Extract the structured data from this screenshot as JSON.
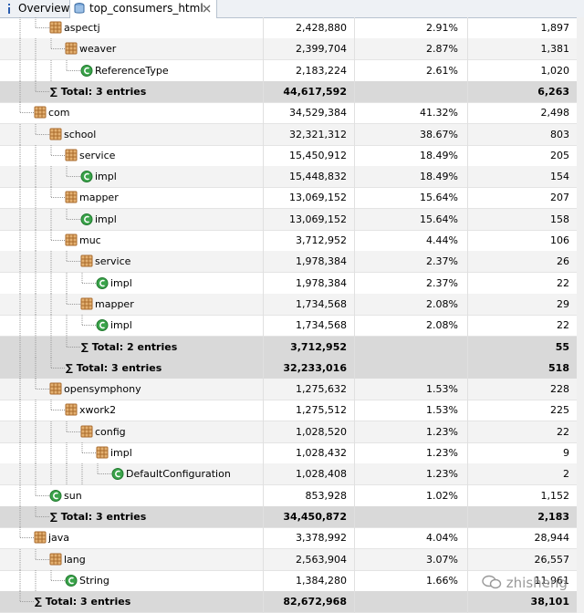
{
  "tabs": [
    {
      "label": "Overview"
    },
    {
      "label": "top_consumers_html"
    }
  ],
  "table": {
    "rows": [
      {
        "name": "aspectj",
        "size": "2,428,880",
        "percent": "2.91%",
        "objects": "1,897"
      },
      {
        "name": "weaver",
        "size": "2,399,704",
        "percent": "2.87%",
        "objects": "1,381"
      },
      {
        "name": "ReferenceType",
        "size": "2,183,224",
        "percent": "2.61%",
        "objects": "1,020"
      },
      {
        "name": "∑ Total: 3 entries",
        "size": "44,617,592",
        "objects": "6,263"
      },
      {
        "name": "com",
        "size": "34,529,384",
        "percent": "41.32%",
        "objects": "2,498"
      },
      {
        "name": "school",
        "size": "32,321,312",
        "percent": "38.67%",
        "objects": "803"
      },
      {
        "name": "service",
        "size": "15,450,912",
        "percent": "18.49%",
        "objects": "205"
      },
      {
        "name": "impl",
        "size": "15,448,832",
        "percent": "18.49%",
        "objects": "154"
      },
      {
        "name": "mapper",
        "size": "13,069,152",
        "percent": "15.64%",
        "objects": "207"
      },
      {
        "name": "impl",
        "size": "13,069,152",
        "percent": "15.64%",
        "objects": "158"
      },
      {
        "name": "muc",
        "size": "3,712,952",
        "percent": "4.44%",
        "objects": "106"
      },
      {
        "name": "service",
        "size": "1,978,384",
        "percent": "2.37%",
        "objects": "26"
      },
      {
        "name": "impl",
        "size": "1,978,384",
        "percent": "2.37%",
        "objects": "22"
      },
      {
        "name": "mapper",
        "size": "1,734,568",
        "percent": "2.08%",
        "objects": "29"
      },
      {
        "name": "impl",
        "size": "1,734,568",
        "percent": "2.08%",
        "objects": "22"
      },
      {
        "name": "∑ Total: 2 entries",
        "size": "3,712,952",
        "objects": "55"
      },
      {
        "name": "∑ Total: 3 entries",
        "size": "32,233,016",
        "objects": "518"
      },
      {
        "name": "opensymphony",
        "size": "1,275,632",
        "percent": "1.53%",
        "objects": "228"
      },
      {
        "name": "xwork2",
        "size": "1,275,512",
        "percent": "1.53%",
        "objects": "225"
      },
      {
        "name": "config",
        "size": "1,028,520",
        "percent": "1.23%",
        "objects": "22"
      },
      {
        "name": "impl",
        "size": "1,028,432",
        "percent": "1.23%",
        "objects": "9"
      },
      {
        "name": "DefaultConfiguration",
        "size": "1,028,408",
        "percent": "1.23%",
        "objects": "2"
      },
      {
        "name": "sun",
        "size": "853,928",
        "percent": "1.02%",
        "objects": "1,152"
      },
      {
        "name": "∑ Total: 3 entries",
        "size": "34,450,872",
        "objects": "2,183"
      },
      {
        "name": "java",
        "size": "3,378,992",
        "percent": "4.04%",
        "objects": "28,944"
      },
      {
        "name": "lang",
        "size": "2,563,904",
        "percent": "3.07%",
        "objects": "26,557"
      },
      {
        "name": "String",
        "size": "1,384,280",
        "percent": "1.66%",
        "objects": "11,961"
      },
      {
        "name": "∑ Total: 3 entries",
        "size": "82,672,968",
        "objects": "38,101"
      }
    ]
  },
  "watermark": "zhisheng"
}
